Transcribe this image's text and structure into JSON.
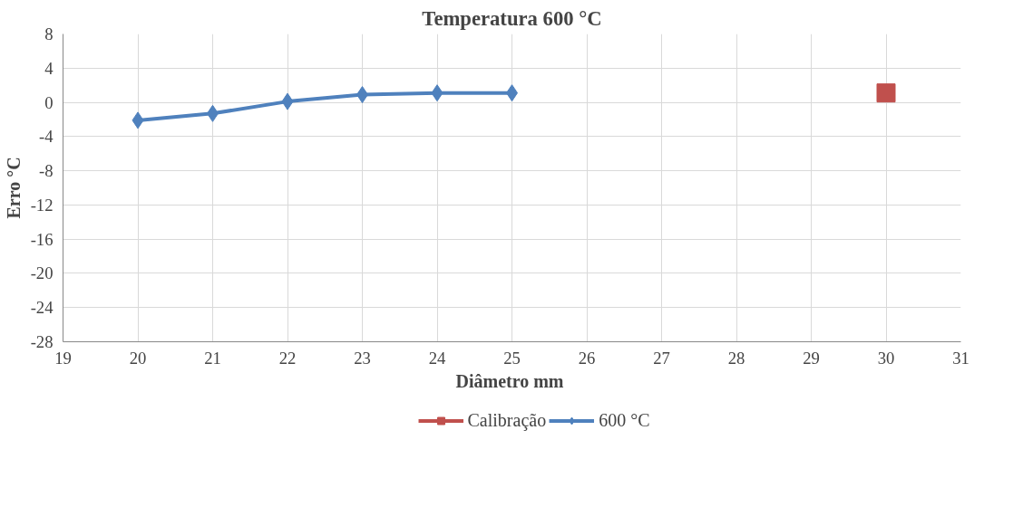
{
  "chart_data": {
    "type": "line",
    "title": "Temperatura 600 °C",
    "xlabel": "Diâmetro  mm",
    "ylabel": "Erro °C",
    "xlim": [
      19,
      31
    ],
    "xticks": [
      19,
      20,
      21,
      22,
      23,
      24,
      25,
      26,
      27,
      28,
      29,
      30,
      31
    ],
    "ylim": [
      -28,
      8
    ],
    "yticks": [
      -28,
      -24,
      -20,
      -16,
      -12,
      -8,
      -4,
      0,
      4,
      8
    ],
    "grid": true,
    "legend": "bottom",
    "series": [
      {
        "name": "Calibração",
        "color": "#c0504d",
        "type": "scatter",
        "marker": "square",
        "x": [
          30
        ],
        "values": [
          1.1
        ]
      },
      {
        "name": "600 °C",
        "color": "#4f81bd",
        "type": "line",
        "marker": "diamond",
        "x": [
          20,
          21,
          22,
          23,
          24,
          25
        ],
        "values": [
          -2.1,
          -1.3,
          0.1,
          0.9,
          1.1,
          1.1
        ]
      }
    ]
  }
}
